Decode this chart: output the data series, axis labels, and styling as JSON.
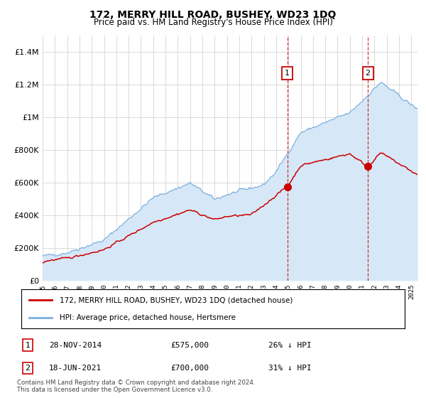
{
  "title": "172, MERRY HILL ROAD, BUSHEY, WD23 1DQ",
  "subtitle": "Price paid vs. HM Land Registry's House Price Index (HPI)",
  "legend_label_red": "172, MERRY HILL ROAD, BUSHEY, WD23 1DQ (detached house)",
  "legend_label_blue": "HPI: Average price, detached house, Hertsmere",
  "footnote": "Contains HM Land Registry data © Crown copyright and database right 2024.\nThis data is licensed under the Open Government Licence v3.0.",
  "marker1_label": "1",
  "marker1_date": "28-NOV-2014",
  "marker1_value": "£575,000",
  "marker1_hpi": "26% ↓ HPI",
  "marker1_year": 2014.91,
  "marker1_price": 575000,
  "marker2_label": "2",
  "marker2_date": "18-JUN-2021",
  "marker2_value": "£700,000",
  "marker2_hpi": "31% ↓ HPI",
  "marker2_year": 2021.46,
  "marker2_price": 700000,
  "ylim": [
    0,
    1500000
  ],
  "xlim_start": 1995.0,
  "xlim_end": 2025.5,
  "color_red": "#cc0000",
  "color_blue": "#7aade0",
  "color_blue_fill": "#d6e8f7",
  "background_color": "#ffffff",
  "grid_color": "#cccccc"
}
